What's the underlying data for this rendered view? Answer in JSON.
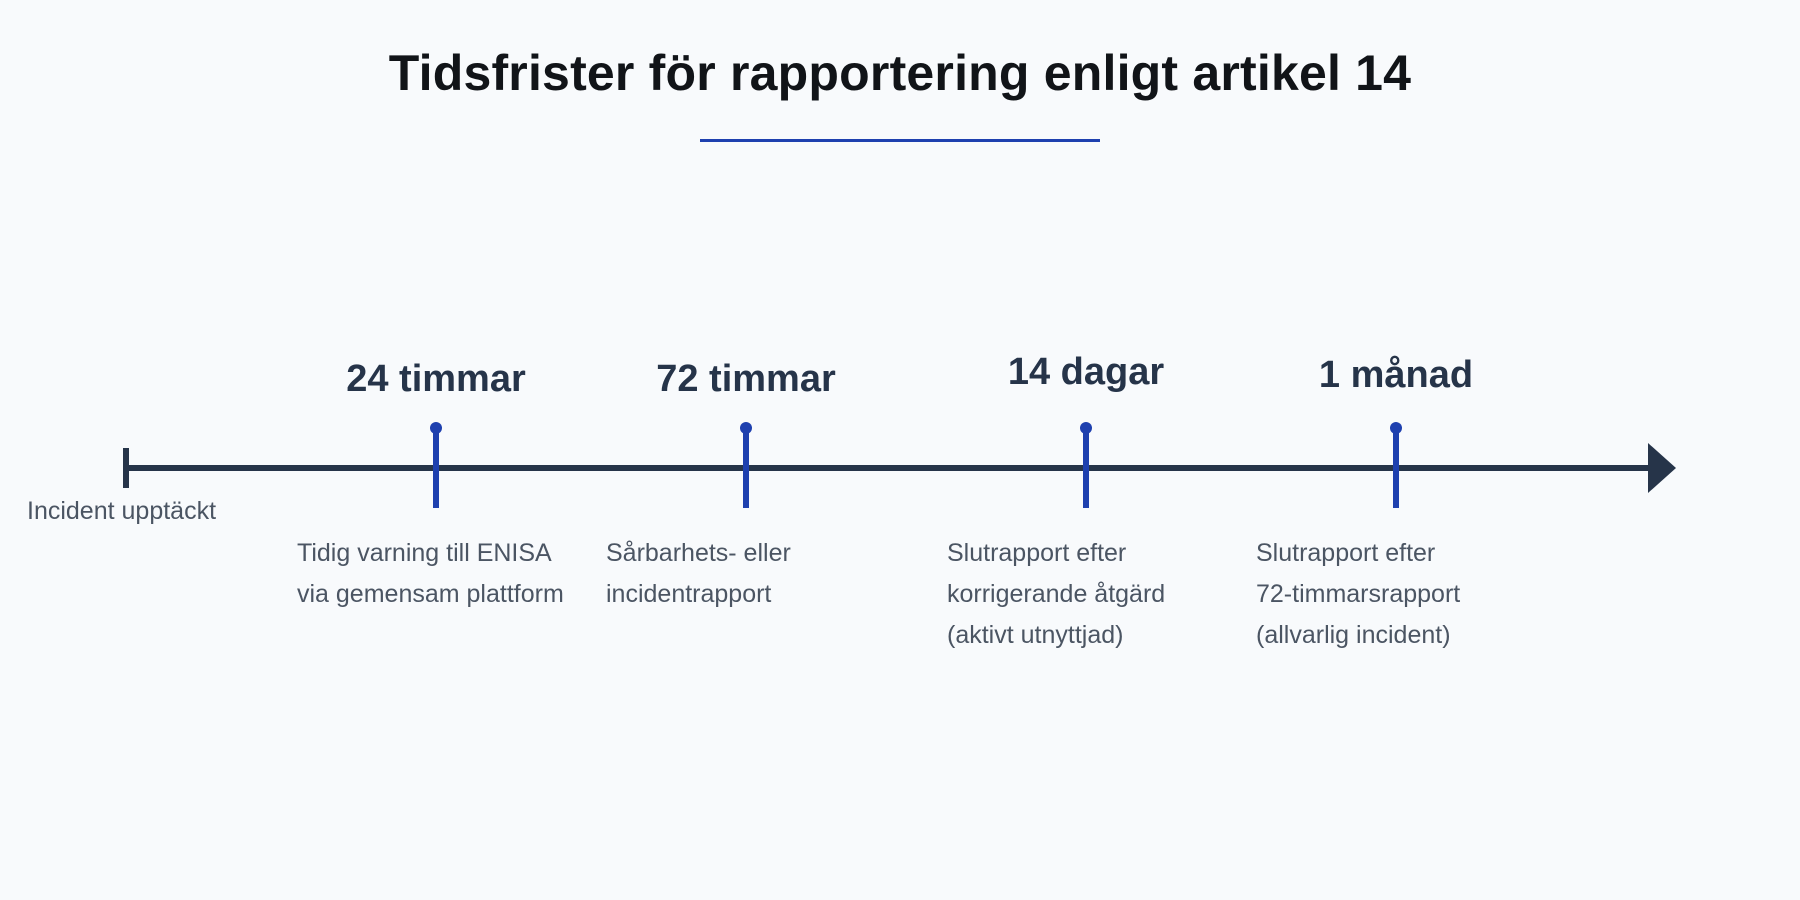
{
  "title": "Tidsfrister för rapportering enligt artikel 14",
  "start": {
    "label": "Incident upptäckt"
  },
  "milestones": [
    {
      "time": "24 timmar",
      "lines": [
        "Tidig varning till ENISA",
        "via gemensam plattform"
      ]
    },
    {
      "time": "72 timmar",
      "lines": [
        "Sårbarhets- eller",
        "incidentrapport"
      ]
    },
    {
      "time": "14 dagar",
      "lines": [
        "Slutrapport efter",
        "korrigerande åtgärd",
        "(aktivt utnyttjad)"
      ]
    },
    {
      "time": "1 månad",
      "lines": [
        "Slutrapport efter",
        "72-timmarsrapport",
        "(allvarlig incident)"
      ]
    }
  ],
  "colors": {
    "axis": "#263449",
    "accent": "#1e40af",
    "text": "#4b5563"
  }
}
